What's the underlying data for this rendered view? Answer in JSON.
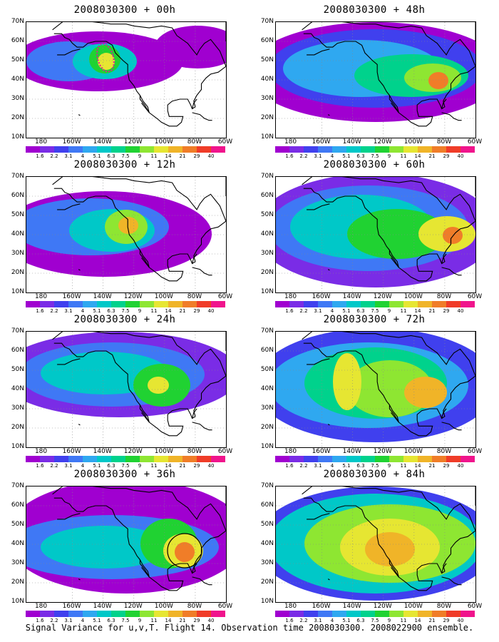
{
  "panels": [
    {
      "title": "2008030300 + 00h"
    },
    {
      "title": "2008030300 + 48h"
    },
    {
      "title": "2008030300 + 12h"
    },
    {
      "title": "2008030300 + 60h"
    },
    {
      "title": "2008030300 + 24h"
    },
    {
      "title": "2008030300 + 72h"
    },
    {
      "title": "2008030300 + 36h"
    },
    {
      "title": "2008030300 + 84h"
    }
  ],
  "lat_labels": [
    "70N",
    "60N",
    "50N",
    "40N",
    "30N",
    "20N",
    "10N"
  ],
  "lon_labels": [
    "180",
    "160W",
    "140W",
    "120W",
    "100W",
    "80W",
    "60W"
  ],
  "colorbar": {
    "labels": [
      "1.6",
      "2.2",
      "3.1",
      "4",
      "5.1",
      "6.3",
      "7.5",
      "9",
      "11",
      "14",
      "21",
      "29",
      "40"
    ],
    "colors": [
      "#a000d0",
      "#7a2ce6",
      "#4040ee",
      "#3f78f5",
      "#2fa8f0",
      "#00c8c8",
      "#00d28c",
      "#20d232",
      "#8ee632",
      "#e6e632",
      "#f0b428",
      "#f07d28",
      "#f03c28",
      "#f0148c"
    ]
  },
  "caption": "Signal Variance for u,v,T. Flight 14. Observation time 2008030300. 2008022900 ensemble."
}
